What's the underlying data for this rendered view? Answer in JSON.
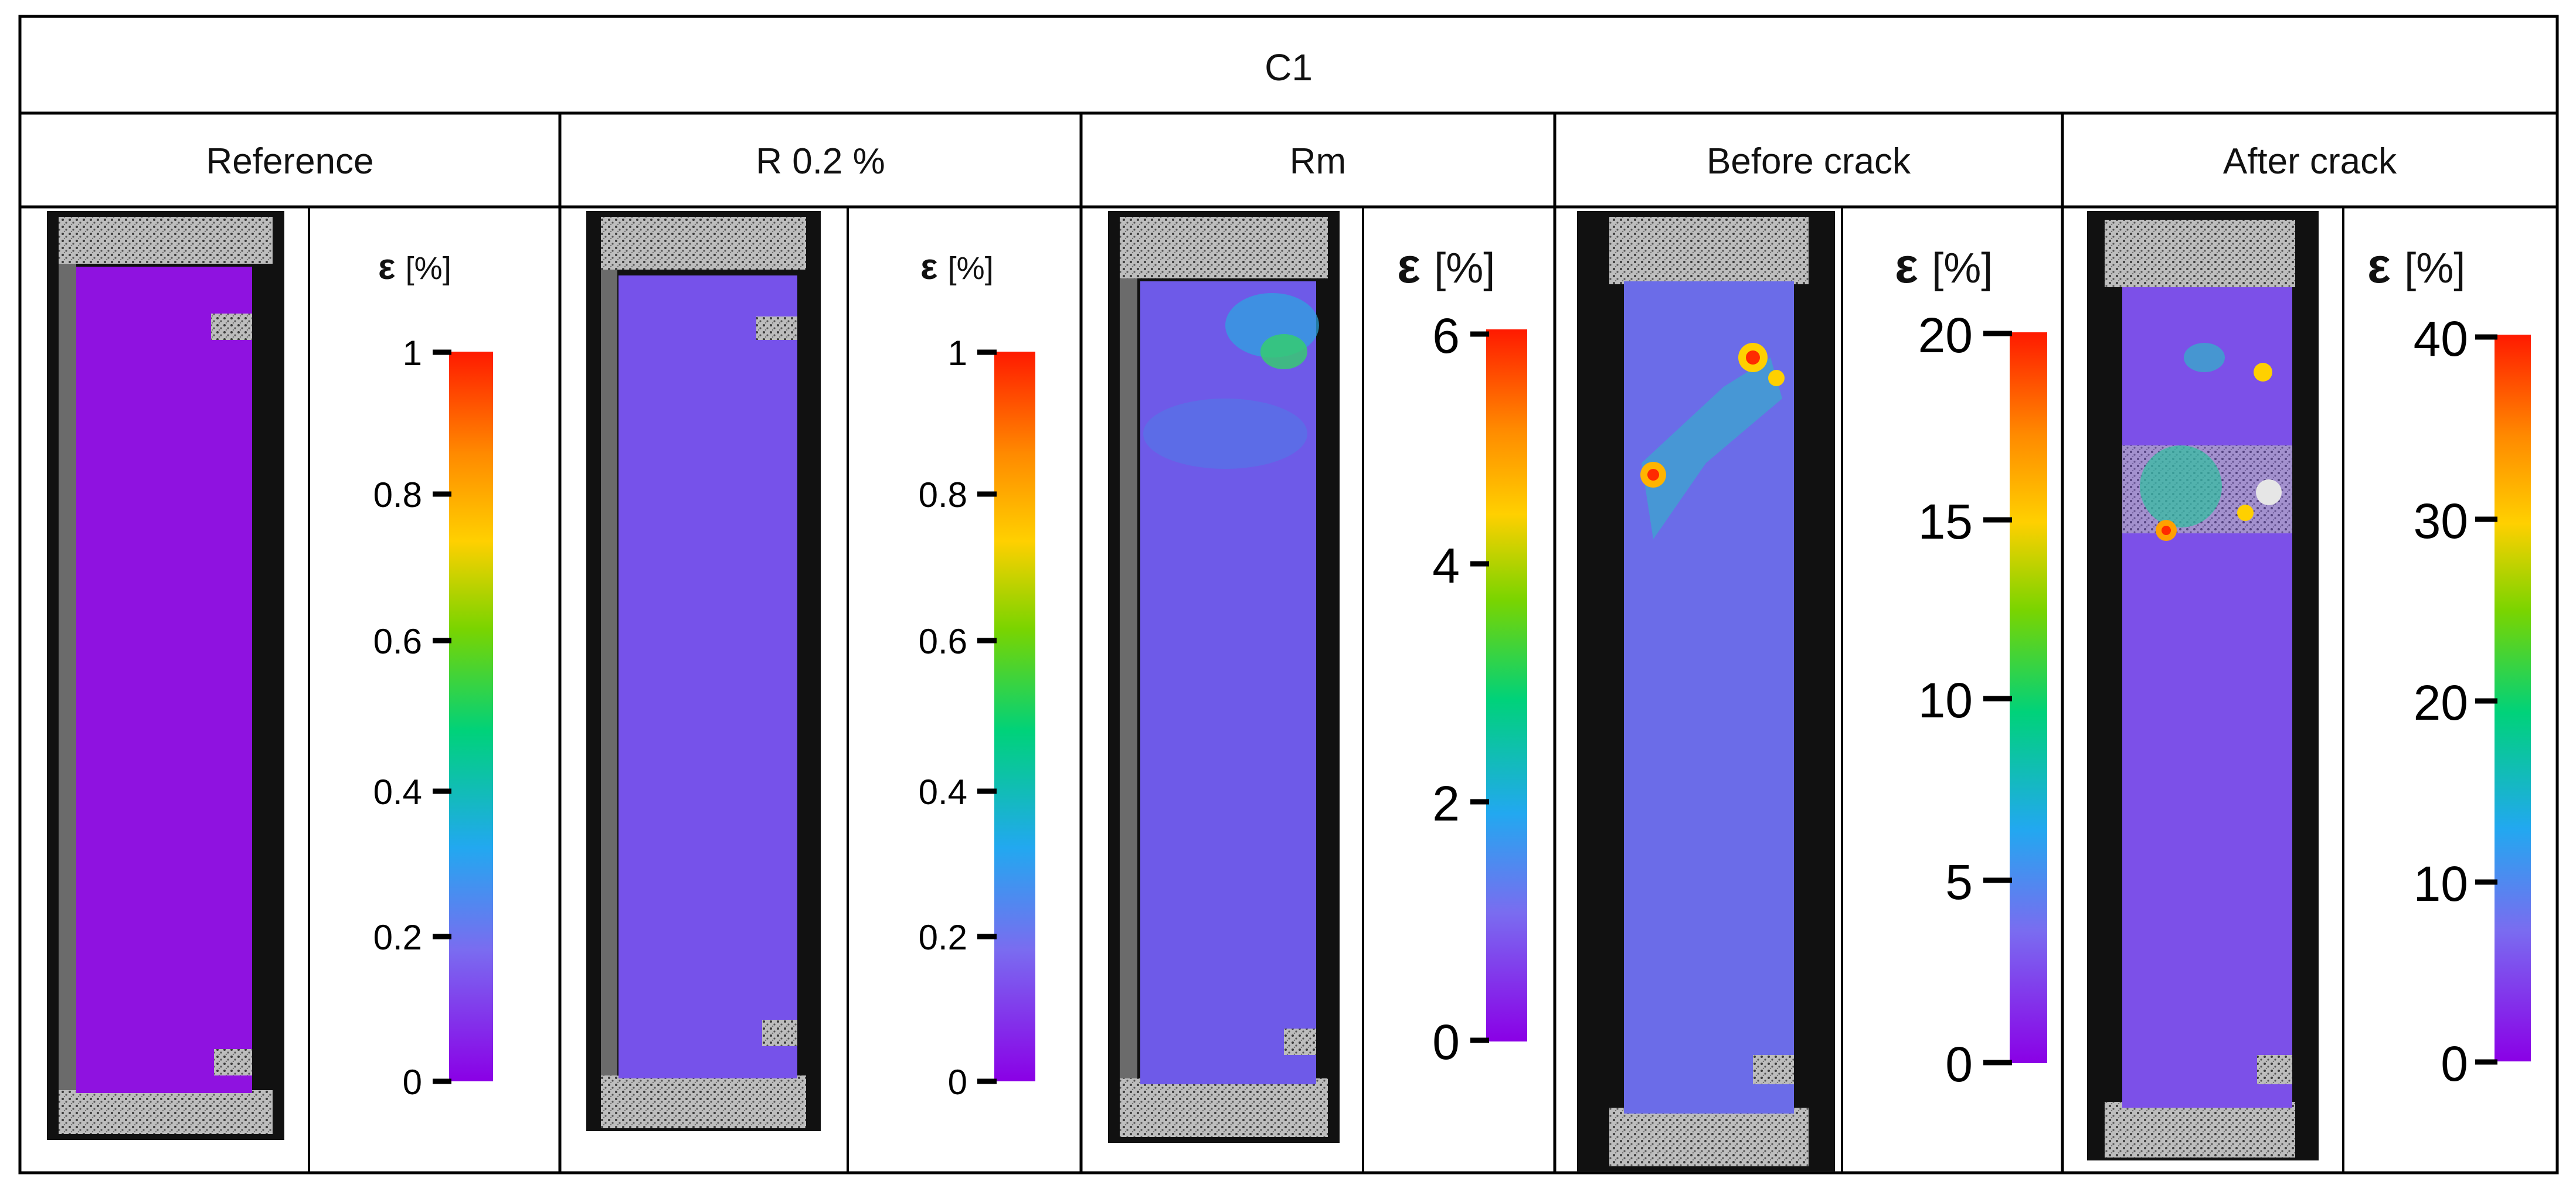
{
  "table": {
    "header": "C1",
    "columns": [
      {
        "label": "Reference",
        "colorbar": {
          "symbol": "ε",
          "unit": "[%]",
          "ticks": [
            "1",
            "0.8",
            "0.6",
            "0.4",
            "0.2",
            "0"
          ]
        }
      },
      {
        "label": "R 0.2 %",
        "colorbar": {
          "symbol": "ε",
          "unit": "[%]",
          "ticks": [
            "1",
            "0.8",
            "0.6",
            "0.4",
            "0.2",
            "0"
          ]
        }
      },
      {
        "label": "Rm",
        "colorbar": {
          "symbol": "ε",
          "unit": "[%]",
          "ticks": [
            "6",
            "4",
            "2",
            "0"
          ]
        }
      },
      {
        "label": "Before crack",
        "colorbar": {
          "symbol": "ε",
          "unit": "[%]",
          "ticks": [
            "20",
            "15",
            "10",
            "5",
            "0"
          ]
        }
      },
      {
        "label": "After crack",
        "colorbar": {
          "symbol": "ε",
          "unit": "[%]",
          "ticks": [
            "40",
            "30",
            "20",
            "10",
            "0"
          ]
        }
      }
    ]
  },
  "colors": {
    "low": "#8a00e6",
    "mid": "#00d27a",
    "high": "#ff1a00",
    "speckle_bg": "#2b2b2b"
  }
}
